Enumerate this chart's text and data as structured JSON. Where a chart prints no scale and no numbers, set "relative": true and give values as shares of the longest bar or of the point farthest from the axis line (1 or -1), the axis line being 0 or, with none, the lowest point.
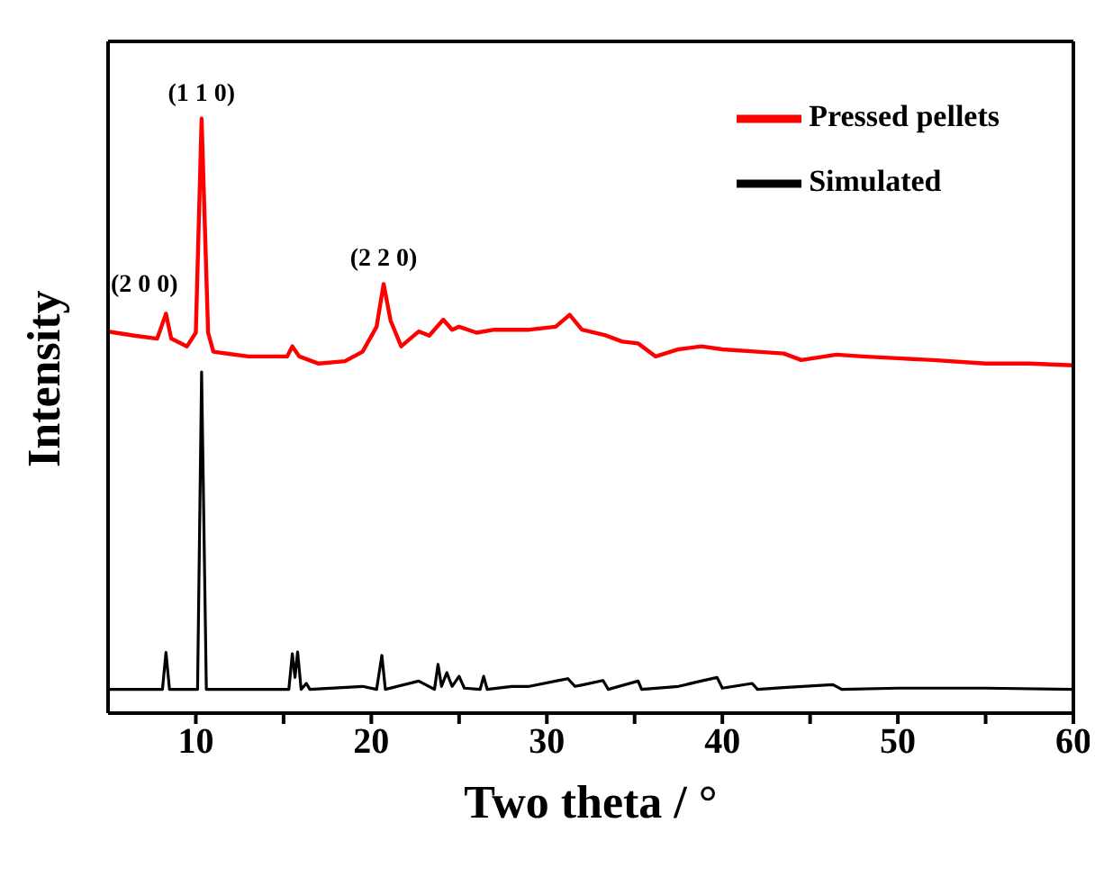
{
  "chart_data": {
    "type": "line",
    "relative": true,
    "xlabel": "Two theta / °",
    "ylabel": "Intensity",
    "xlim": [
      5,
      60
    ],
    "xticks": [
      10,
      {
        "value": 15,
        "label": null
      },
      20,
      {
        "value": 25,
        "label": null
      },
      30,
      {
        "value": 35,
        "label": null
      },
      40,
      {
        "value": 45,
        "label": null
      },
      50,
      {
        "value": 55,
        "label": null
      },
      60
    ],
    "tick_labels": "x",
    "legend": "top right",
    "marker": "none",
    "line_style": "solid",
    "annotations": [
      {
        "text": "(2 0 0)",
        "x": 8.3,
        "y": 0.672
      },
      {
        "text": "(1 1 0)",
        "x": 10.33,
        "y": 1.0
      },
      {
        "text": "(2 2 0)",
        "x": 20.7,
        "y": 0.722
      }
    ],
    "series": [
      {
        "name": "Pressed pellets",
        "color": "#ff0000",
        "x": [
          5,
          6.5,
          7.8,
          8.3,
          8.6,
          9.5,
          10.0,
          10.33,
          10.7,
          11,
          13,
          15.2,
          15.5,
          15.9,
          17,
          18.5,
          19.5,
          20.3,
          20.7,
          21.1,
          21.7,
          22.7,
          23.3,
          24.1,
          24.6,
          25,
          26,
          27,
          29,
          30.5,
          31.3,
          32,
          33.3,
          34.3,
          35.2,
          36.2,
          37.5,
          38.8,
          40,
          42,
          43.5,
          44.5,
          46.5,
          48,
          50,
          52,
          55,
          57.5,
          60
        ],
        "values": [
          0.642,
          0.635,
          0.63,
          0.672,
          0.63,
          0.617,
          0.64,
          1.0,
          0.64,
          0.608,
          0.6,
          0.6,
          0.617,
          0.6,
          0.588,
          0.592,
          0.608,
          0.65,
          0.722,
          0.66,
          0.617,
          0.642,
          0.635,
          0.662,
          0.645,
          0.65,
          0.64,
          0.645,
          0.645,
          0.65,
          0.67,
          0.645,
          0.636,
          0.625,
          0.622,
          0.6,
          0.612,
          0.617,
          0.612,
          0.608,
          0.605,
          0.594,
          0.603,
          0.6,
          0.597,
          0.594,
          0.588,
          0.588,
          0.585
        ]
      },
      {
        "name": "Simulated",
        "color": "#000000",
        "x": [
          5,
          8.1,
          8.3,
          8.5,
          10.1,
          10.33,
          10.6,
          15.3,
          15.5,
          15.65,
          15.8,
          16.0,
          16.3,
          16.5,
          19.5,
          20.3,
          20.6,
          20.8,
          22.7,
          23.6,
          23.8,
          24.0,
          24.3,
          24.6,
          25.0,
          25.3,
          26.2,
          26.4,
          26.6,
          28,
          29,
          30.7,
          31.2,
          31.6,
          32.1,
          33.2,
          33.5,
          35.2,
          35.4,
          37.5,
          38.5,
          39.7,
          40,
          41.7,
          42,
          43.5,
          46.3,
          46.8,
          50,
          55,
          60
        ],
        "values": [
          0.04,
          0.04,
          0.102,
          0.04,
          0.04,
          0.574,
          0.04,
          0.04,
          0.1,
          0.06,
          0.103,
          0.04,
          0.05,
          0.04,
          0.045,
          0.04,
          0.097,
          0.04,
          0.054,
          0.04,
          0.082,
          0.045,
          0.068,
          0.045,
          0.062,
          0.042,
          0.04,
          0.062,
          0.04,
          0.045,
          0.045,
          0.055,
          0.058,
          0.045,
          0.048,
          0.055,
          0.04,
          0.054,
          0.04,
          0.045,
          0.052,
          0.06,
          0.042,
          0.05,
          0.04,
          0.043,
          0.048,
          0.04,
          0.042,
          0.042,
          0.04
        ]
      }
    ]
  }
}
